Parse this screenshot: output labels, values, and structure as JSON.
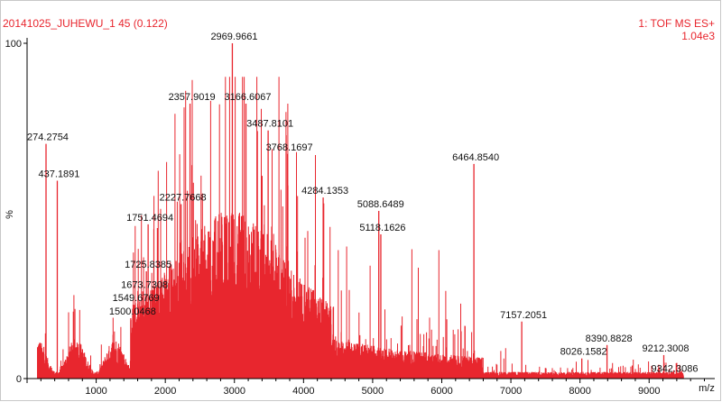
{
  "header": {
    "sample": "20141025_JUHEWU_1 45 (0.122)",
    "scan_function": "1: TOF MS ES+",
    "intensity": "1.04e3"
  },
  "colors": {
    "spectrum": "#e8262e",
    "axis": "#000000",
    "text": "#111111"
  },
  "chart_data": {
    "type": "bar",
    "title": "",
    "xlabel": "m/z",
    "ylabel": "%",
    "xlim": [
      0,
      9950
    ],
    "ylim": [
      0,
      100
    ],
    "x_ticks": [
      1000,
      2000,
      3000,
      4000,
      5000,
      6000,
      7000,
      8000,
      9000
    ],
    "y_ticks": [
      0,
      100
    ],
    "grid": false,
    "labeled_peaks": [
      {
        "x": 274.2754,
        "y": 70
      },
      {
        "x": 437.1891,
        "y": 59
      },
      {
        "x": 1500.0468,
        "y": 18
      },
      {
        "x": 1549.6769,
        "y": 22
      },
      {
        "x": 1673.7308,
        "y": 26
      },
      {
        "x": 1725.8385,
        "y": 32
      },
      {
        "x": 1751.4694,
        "y": 46
      },
      {
        "x": 2227.7668,
        "y": 52
      },
      {
        "x": 2357.9019,
        "y": 82
      },
      {
        "x": 2969.9661,
        "y": 100
      },
      {
        "x": 3166.6067,
        "y": 82
      },
      {
        "x": 3487.8101,
        "y": 74
      },
      {
        "x": 3768.1697,
        "y": 67
      },
      {
        "x": 4284.1353,
        "y": 54
      },
      {
        "x": 5088.6489,
        "y": 50
      },
      {
        "x": 5118.1626,
        "y": 43
      },
      {
        "x": 6464.854,
        "y": 64
      },
      {
        "x": 7157.2051,
        "y": 17
      },
      {
        "x": 8026.1582,
        "y": 6
      },
      {
        "x": 8390.8828,
        "y": 10
      },
      {
        "x": 9212.3008,
        "y": 7
      },
      {
        "x": 9342.3086,
        "y": 1
      }
    ]
  }
}
